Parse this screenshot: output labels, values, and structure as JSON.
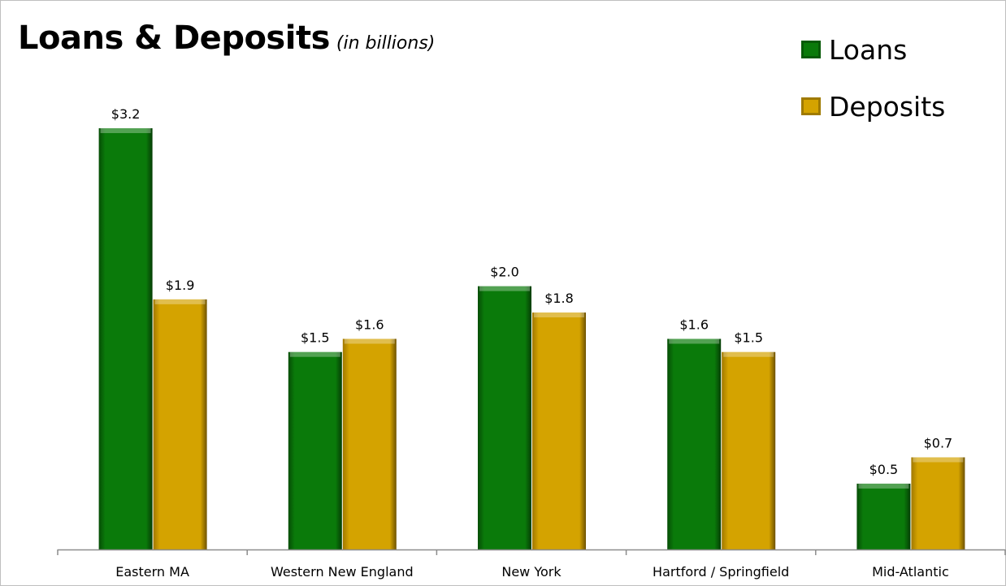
{
  "chart_data": {
    "type": "bar",
    "title": "Loans & Deposits",
    "subtitle": "(in billions)",
    "categories": [
      "Eastern MA",
      "Western New England",
      "New York",
      "Hartford / Springfield",
      "Mid-Atlantic"
    ],
    "series": [
      {
        "name": "Loans",
        "color": "#0a7a0a",
        "values": [
          3.2,
          1.5,
          2.0,
          1.6,
          0.5
        ],
        "labels": [
          "$3.2",
          "$1.5",
          "$2.0",
          "$1.6",
          "$0.5"
        ]
      },
      {
        "name": "Deposits",
        "color": "#d4a300",
        "values": [
          1.9,
          1.6,
          1.8,
          1.5,
          0.7
        ],
        "labels": [
          "$1.9",
          "$1.6",
          "$1.8",
          "$1.5",
          "$0.7"
        ]
      }
    ],
    "ylim": [
      0,
      3.2
    ],
    "grid": false,
    "y_axis_visible": false,
    "legend_position": "top-right"
  }
}
